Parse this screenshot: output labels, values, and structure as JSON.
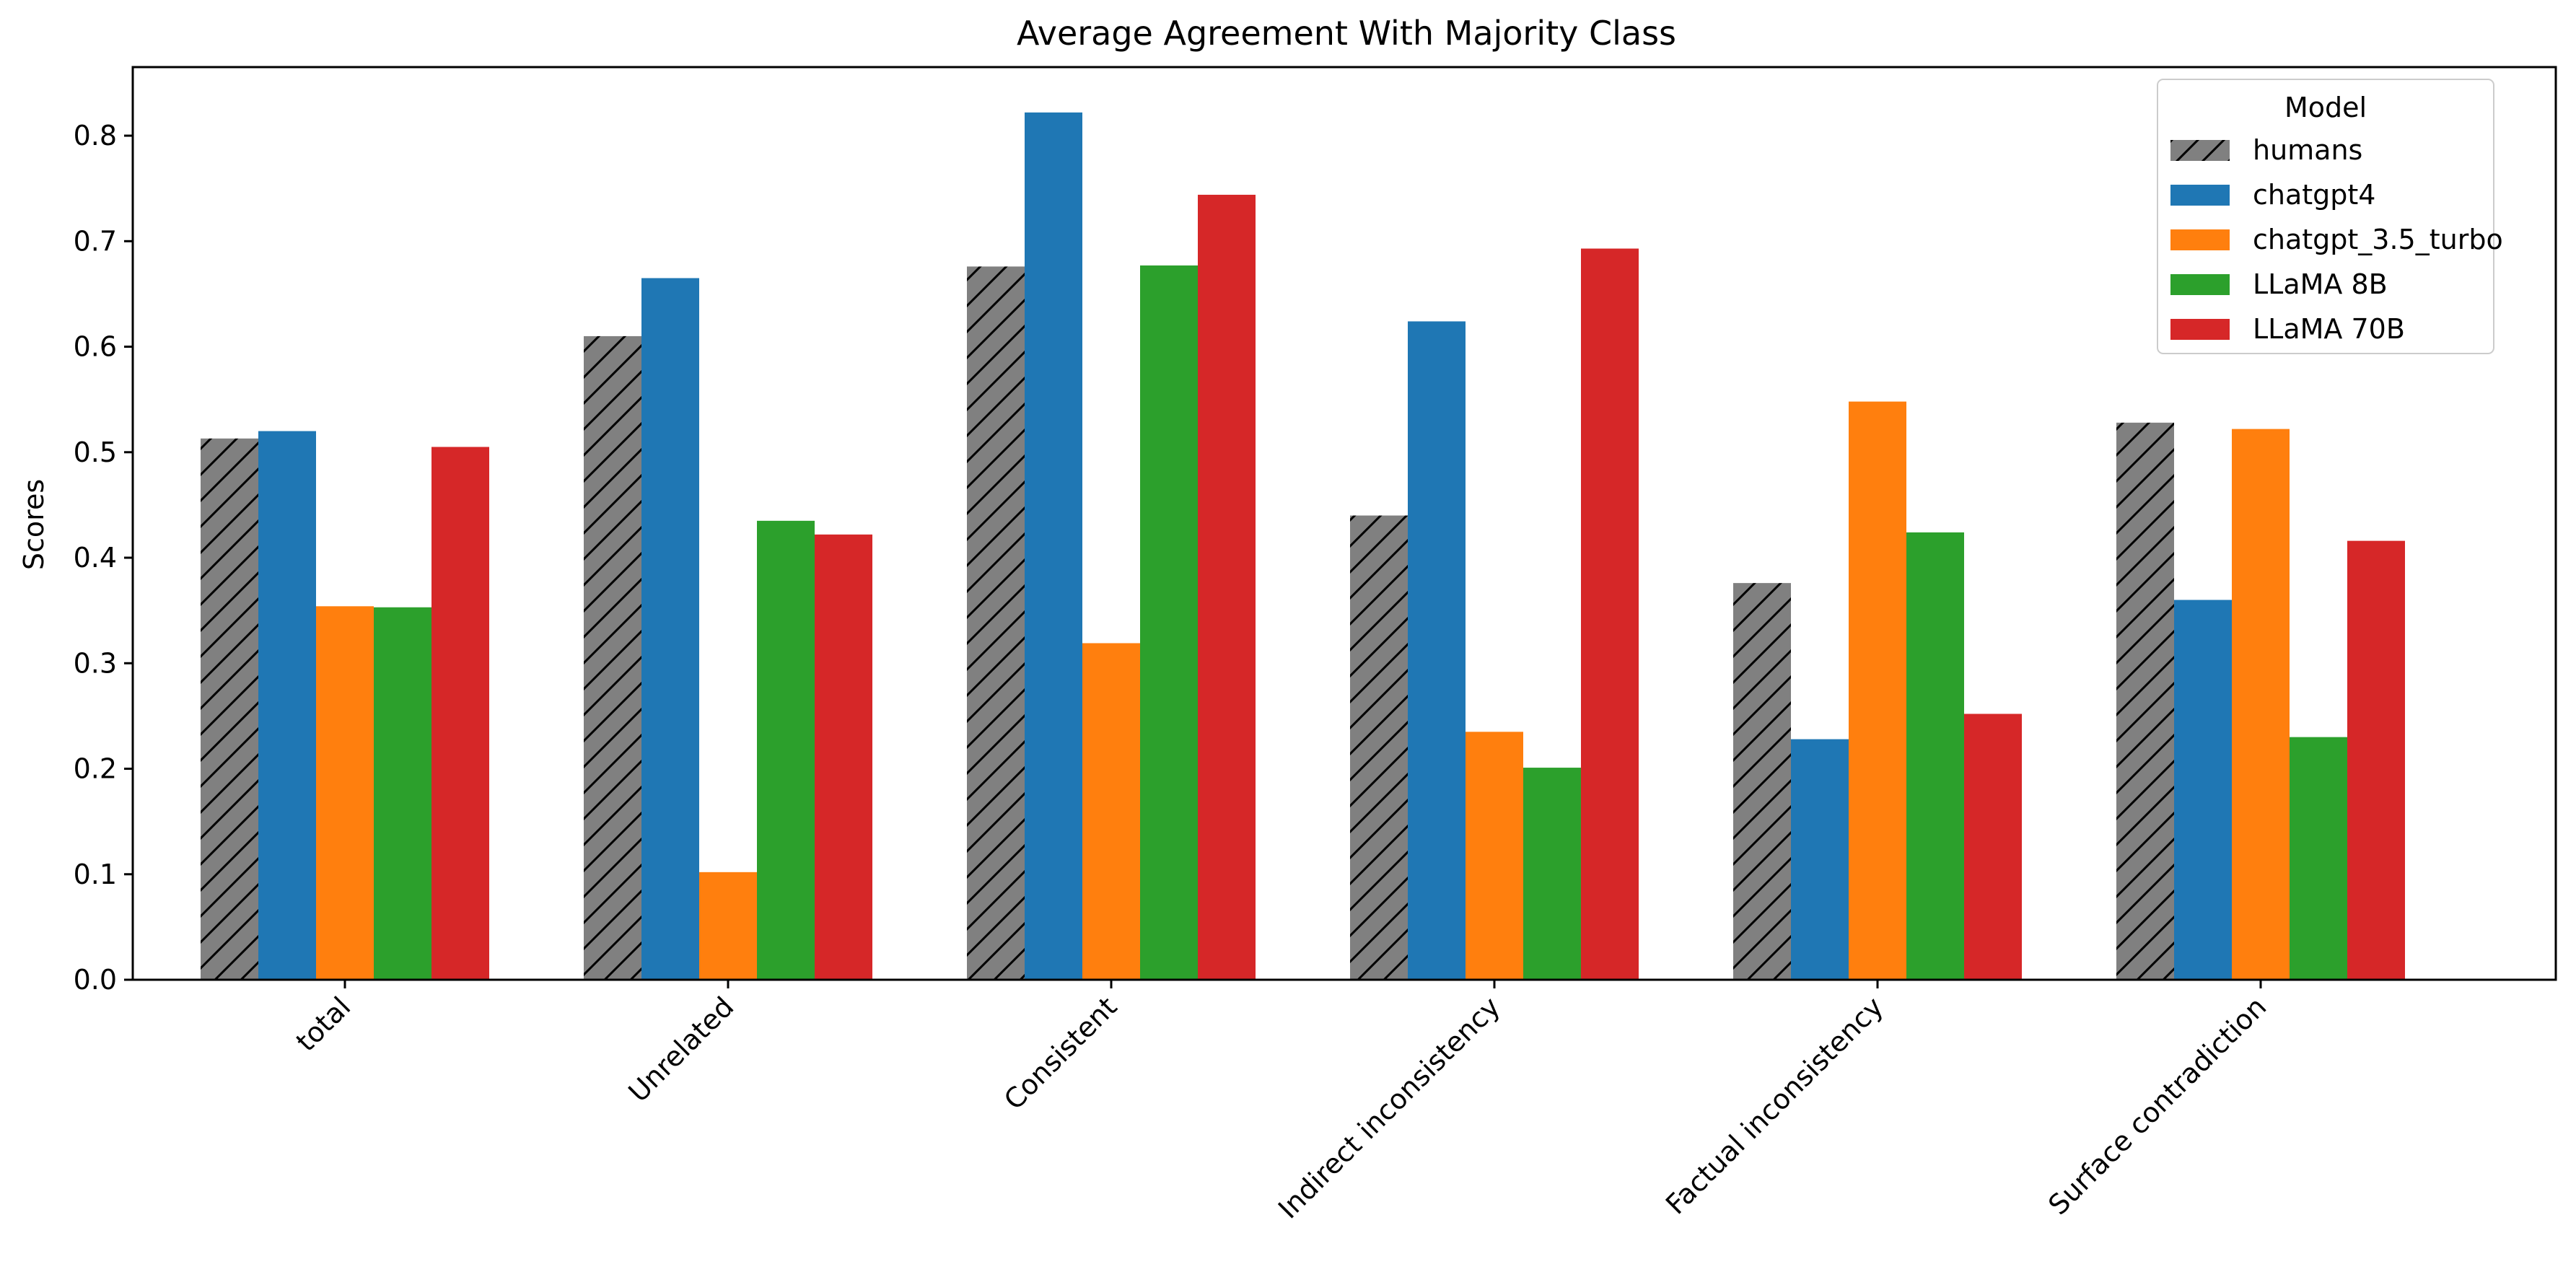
{
  "chart_data": {
    "type": "bar",
    "title": "Average Agreement With Majority Class",
    "xlabel": "",
    "ylabel": "Scores",
    "ylim": [
      0,
      0.865
    ],
    "yticks": [
      0.0,
      0.1,
      0.2,
      0.3,
      0.4,
      0.5,
      0.6,
      0.7,
      0.8
    ],
    "grid": false,
    "legend": {
      "title": "Model",
      "position": "top-right"
    },
    "categories": [
      "total",
      "Unrelated",
      "Consistent",
      "Indirect inconsistency",
      "Factual inconsistency",
      "Surface contradiction"
    ],
    "series": [
      {
        "name": "humans",
        "color": "#808080",
        "hatch": "diagonal",
        "values": [
          0.513,
          0.61,
          0.676,
          0.44,
          0.376,
          0.528
        ]
      },
      {
        "name": "chatgpt4",
        "color": "#1f77b4",
        "values": [
          0.52,
          0.665,
          0.822,
          0.624,
          0.228,
          0.36
        ]
      },
      {
        "name": "chatgpt_3.5_turbo",
        "color": "#ff7f0e",
        "values": [
          0.354,
          0.102,
          0.319,
          0.235,
          0.548,
          0.522
        ]
      },
      {
        "name": "LLaMA 8B",
        "color": "#2ca02c",
        "values": [
          0.353,
          0.435,
          0.677,
          0.201,
          0.424,
          0.23
        ]
      },
      {
        "name": "LLaMA 70B",
        "color": "#d62728",
        "values": [
          0.505,
          0.422,
          0.744,
          0.693,
          0.252,
          0.416
        ]
      }
    ]
  }
}
